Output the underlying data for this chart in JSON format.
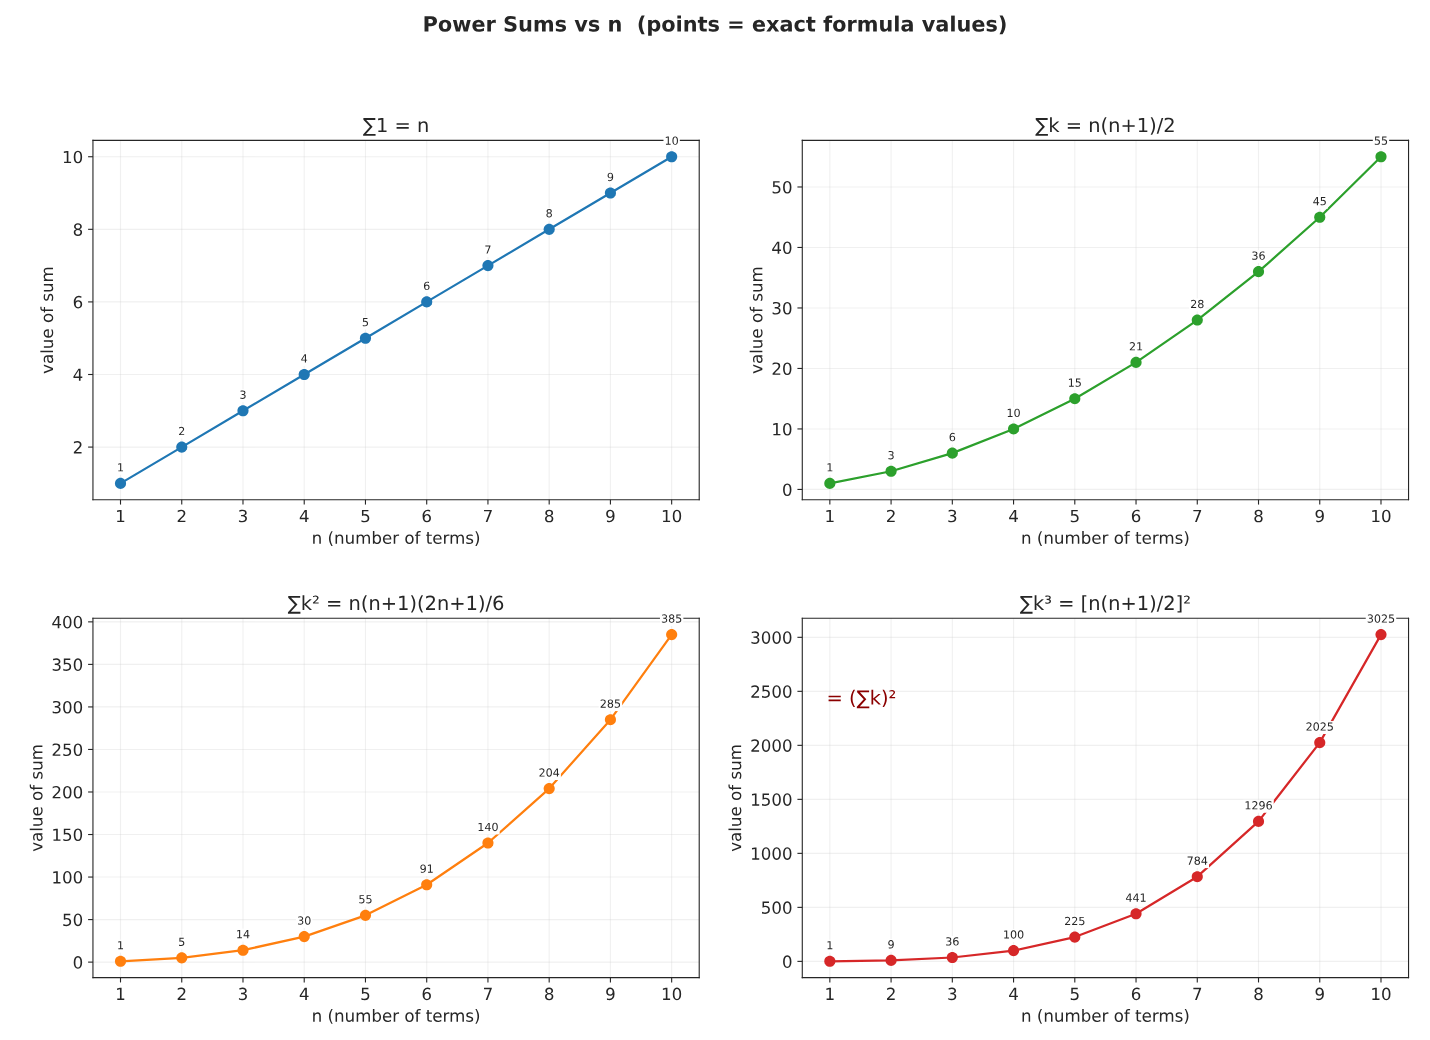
{
  "chart_data": [
    {
      "type": "line",
      "title": "∑1 = n",
      "xlabel": "n (number of terms)",
      "ylabel": "value of sum",
      "x": [
        1,
        2,
        3,
        4,
        5,
        6,
        7,
        8,
        9,
        10
      ],
      "series": [
        {
          "color": "#1f77b4",
          "values": [
            1,
            2,
            3,
            4,
            5,
            6,
            7,
            8,
            9,
            10
          ]
        }
      ],
      "xlim": [
        0.55,
        10.45
      ],
      "xticks": [
        1,
        2,
        3,
        4,
        5,
        6,
        7,
        8,
        9,
        10
      ],
      "ylim": [
        0.55,
        10.45
      ],
      "yticks": [
        2,
        4,
        6,
        8,
        10
      ],
      "grid": true,
      "marker": "circle",
      "line_style": "solid",
      "data_labels": true
    },
    {
      "type": "line",
      "title": "∑k = n(n+1)/2",
      "xlabel": "n (number of terms)",
      "ylabel": "value of sum",
      "x": [
        1,
        2,
        3,
        4,
        5,
        6,
        7,
        8,
        9,
        10
      ],
      "series": [
        {
          "color": "#2ca02c",
          "values": [
            1,
            3,
            6,
            10,
            15,
            21,
            28,
            36,
            45,
            55
          ]
        }
      ],
      "xlim": [
        0.55,
        10.45
      ],
      "xticks": [
        1,
        2,
        3,
        4,
        5,
        6,
        7,
        8,
        9,
        10
      ],
      "ylim": [
        -1.7,
        57.7
      ],
      "yticks": [
        0,
        10,
        20,
        30,
        40,
        50
      ],
      "grid": true,
      "marker": "circle",
      "line_style": "solid",
      "data_labels": true
    },
    {
      "type": "line",
      "title": "∑k² = n(n+1)(2n+1)/6",
      "xlabel": "n (number of terms)",
      "ylabel": "value of sum",
      "x": [
        1,
        2,
        3,
        4,
        5,
        6,
        7,
        8,
        9,
        10
      ],
      "series": [
        {
          "color": "#ff7f0e",
          "values": [
            1,
            5,
            14,
            30,
            55,
            91,
            140,
            204,
            285,
            385
          ]
        }
      ],
      "xlim": [
        0.55,
        10.45
      ],
      "xticks": [
        1,
        2,
        3,
        4,
        5,
        6,
        7,
        8,
        9,
        10
      ],
      "ylim": [
        -18.2,
        404.2
      ],
      "yticks": [
        0,
        50,
        100,
        150,
        200,
        250,
        300,
        350,
        400
      ],
      "grid": true,
      "marker": "circle",
      "line_style": "solid",
      "data_labels": true
    },
    {
      "type": "line",
      "title": "∑k³ = [n(n+1)/2]²",
      "xlabel": "n (number of terms)",
      "ylabel": "value of sum",
      "x": [
        1,
        2,
        3,
        4,
        5,
        6,
        7,
        8,
        9,
        10
      ],
      "series": [
        {
          "color": "#d62728",
          "values": [
            1,
            9,
            36,
            100,
            225,
            441,
            784,
            1296,
            2025,
            3025
          ]
        }
      ],
      "xlim": [
        0.55,
        10.45
      ],
      "xticks": [
        1,
        2,
        3,
        4,
        5,
        6,
        7,
        8,
        9,
        10
      ],
      "ylim": [
        -150.2,
        3176.2
      ],
      "yticks": [
        0,
        500,
        1000,
        1500,
        2000,
        2500,
        3000
      ],
      "grid": true,
      "marker": "circle",
      "line_style": "solid",
      "data_labels": true,
      "annotations": [
        "= (∑k)²"
      ]
    },
    {
      "type": "other",
      "title": "Power Sums vs n  (points = exact formula values)"
    }
  ]
}
